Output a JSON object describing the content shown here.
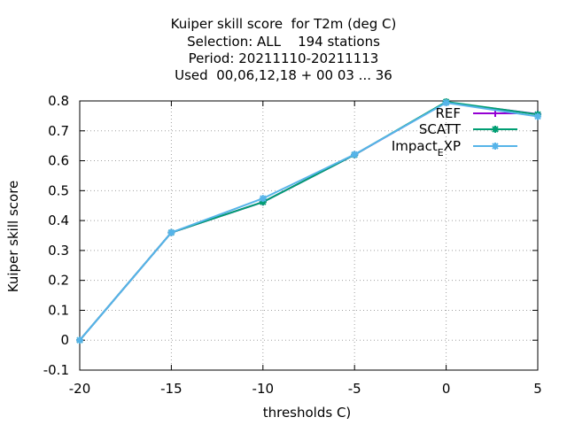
{
  "chart_data": {
    "type": "line",
    "title_lines": [
      "Kuiper skill score  for T2m (deg C)",
      "Selection: ALL    194 stations",
      "Period: 20211110-20211113",
      "Used  00,06,12,18 + 00 03 ... 36"
    ],
    "xlabel": "thresholds C)",
    "ylabel": "Kuiper skill score",
    "xlim": [
      -20,
      5
    ],
    "ylim": [
      -0.1,
      0.8
    ],
    "xticks": [
      -20,
      -15,
      -10,
      -5,
      0,
      5
    ],
    "xtick_labels": [
      "-20",
      "-15",
      "-10",
      "-5",
      "0",
      "5"
    ],
    "yticks": [
      -0.1,
      0,
      0.1,
      0.2,
      0.3,
      0.4,
      0.5,
      0.6,
      0.7,
      0.8
    ],
    "ytick_labels": [
      "-0.1",
      "0",
      "0.1",
      "0.2",
      "0.3",
      "0.4",
      "0.5",
      "0.6",
      "0.7",
      "0.8"
    ],
    "grid": true,
    "legend_position": "top-right",
    "x": [
      -20,
      -15,
      -10,
      -5,
      0,
      5
    ],
    "series": [
      {
        "name": "REF",
        "legend_main": "REF",
        "legend_sub": "",
        "legend_tail": "",
        "color": "#9400d3",
        "marker": "plus",
        "values": [
          0,
          0.36,
          0.462,
          0.62,
          0.795,
          0.756
        ]
      },
      {
        "name": "SCATT",
        "legend_main": "SCATT",
        "legend_sub": "",
        "legend_tail": "",
        "color": "#009e73",
        "marker": "star",
        "values": [
          0,
          0.36,
          0.462,
          0.62,
          0.797,
          0.755
        ]
      },
      {
        "name": "Impact_EXP",
        "legend_main": "Impact",
        "legend_sub": "E",
        "legend_tail": "XP",
        "color": "#56b4e9",
        "marker": "star",
        "values": [
          0,
          0.36,
          0.474,
          0.621,
          0.794,
          0.748
        ]
      }
    ]
  }
}
